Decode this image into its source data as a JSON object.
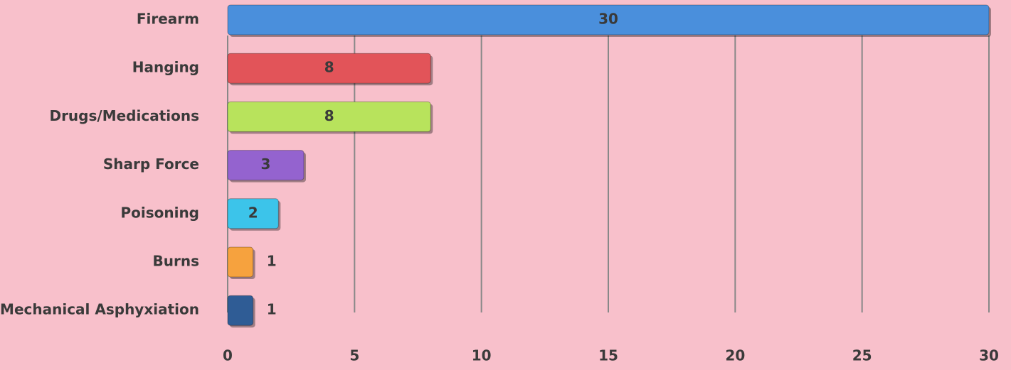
{
  "chart_data": {
    "type": "bar",
    "orientation": "horizontal",
    "categories": [
      "Firearm",
      "Hanging",
      "Drugs/Medications",
      "Sharp Force",
      "Poisoning",
      "Burns",
      "Mechanical Asphyxiation"
    ],
    "values": [
      30,
      8,
      8,
      3,
      2,
      1,
      1
    ],
    "colors": [
      "#4a8fdc",
      "#e25459",
      "#b8e35c",
      "#9463cf",
      "#3cc4ea",
      "#f6a23e",
      "#2f5c95"
    ],
    "xlim": [
      0,
      30
    ],
    "xticks": [
      0,
      5,
      10,
      15,
      20,
      25,
      30
    ],
    "grid": true
  }
}
